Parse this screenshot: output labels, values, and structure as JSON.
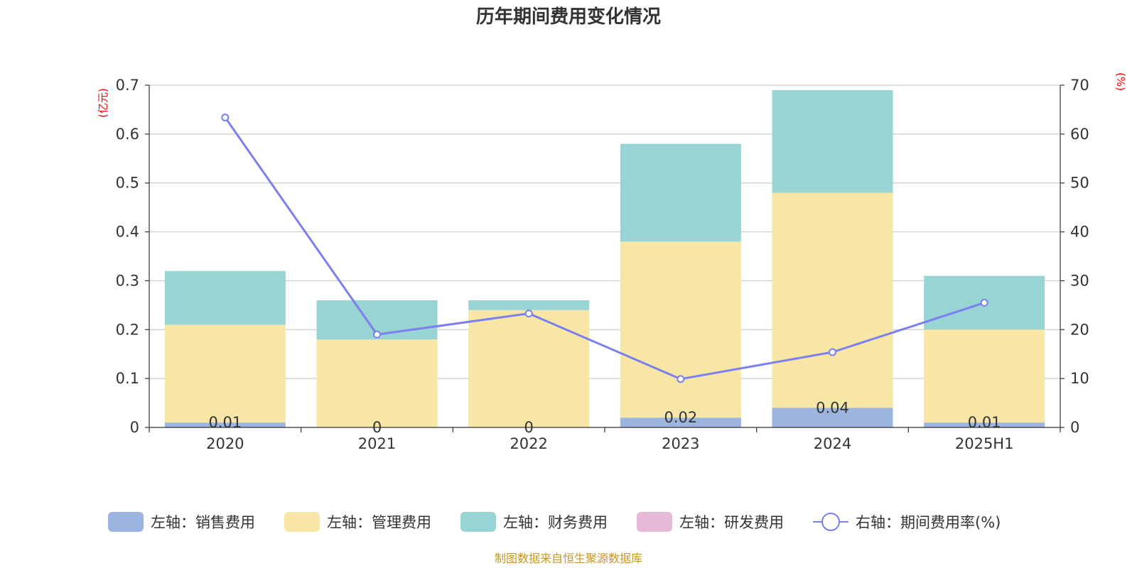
{
  "chart_data": {
    "type": "bar",
    "title": "历年期间费用变化情况",
    "categories": [
      "2020",
      "2021",
      "2022",
      "2023",
      "2024",
      "2025H1"
    ],
    "left_axis": {
      "unit": "(亿元)",
      "ylim": [
        0,
        0.7
      ],
      "ticks": [
        "0",
        "0.1",
        "0.2",
        "0.3",
        "0.4",
        "0.5",
        "0.6",
        "0.7"
      ]
    },
    "right_axis": {
      "unit": "(%)",
      "ylim": [
        0,
        70
      ],
      "ticks": [
        "0",
        "10",
        "20",
        "30",
        "40",
        "50",
        "60",
        "70"
      ]
    },
    "grid": true,
    "legend_position": "bottom",
    "series": [
      {
        "name": "左轴：销售费用",
        "type": "bar",
        "axis": "left",
        "color": "#9bb5e0",
        "values": [
          0.01,
          0,
          0,
          0.02,
          0.04,
          0.01
        ],
        "labels": [
          "0.01",
          "0",
          "0",
          "0.02",
          "0.04",
          "0.01"
        ]
      },
      {
        "name": "左轴：管理费用",
        "type": "bar",
        "axis": "left",
        "color": "#f7e6a6",
        "values": [
          0.2,
          0.18,
          0.24,
          0.36,
          0.44,
          0.19
        ]
      },
      {
        "name": "左轴：财务费用",
        "type": "bar",
        "axis": "left",
        "color": "#98d4d4",
        "values": [
          0.11,
          0.08,
          0.02,
          0.2,
          0.21,
          0.11
        ]
      },
      {
        "name": "左轴：研发费用",
        "type": "bar",
        "axis": "left",
        "color": "#e8b8d8",
        "values": [
          0,
          0,
          0,
          0,
          0,
          0
        ]
      },
      {
        "name": "右轴：期间费用率(%)",
        "type": "line",
        "axis": "right",
        "color": "#7b7ff0",
        "values": [
          63.4,
          19.0,
          23.3,
          9.9,
          15.4,
          25.5
        ]
      }
    ],
    "source": "制图数据来自恒生聚源数据库"
  }
}
